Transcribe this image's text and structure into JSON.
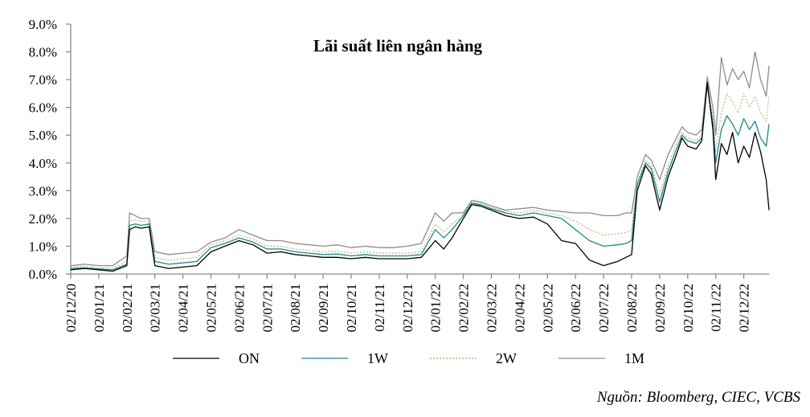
{
  "chart_data": {
    "type": "line",
    "title": "Lãi suất liên ngân hàng",
    "xlabel": "",
    "ylabel": "",
    "ylim": [
      0,
      9
    ],
    "yticks": [
      "0.0%",
      "1.0%",
      "2.0%",
      "3.0%",
      "4.0%",
      "5.0%",
      "6.0%",
      "7.0%",
      "8.0%",
      "9.0%"
    ],
    "xticks": [
      "02/12/20",
      "02/01/21",
      "02/02/21",
      "02/03/21",
      "02/04/21",
      "02/05/21",
      "02/06/21",
      "02/07/21",
      "02/08/21",
      "02/09/21",
      "02/10/21",
      "02/11/21",
      "02/12/21",
      "02/01/22",
      "02/02/22",
      "02/03/22",
      "02/04/22",
      "02/05/22",
      "02/06/22",
      "02/07/22",
      "02/08/22",
      "02/09/22",
      "02/10/22",
      "02/11/22",
      "02/12/22"
    ],
    "grid": false,
    "legend_position": "bottom",
    "x": [
      0,
      0.5,
      1,
      1.5,
      2,
      2.1,
      2.3,
      2.5,
      2.8,
      3,
      3.5,
      4,
      4.5,
      5,
      5.5,
      6,
      6.5,
      7,
      7.5,
      8,
      8.5,
      9,
      9.5,
      10,
      10.5,
      11,
      11.5,
      12,
      12.5,
      13,
      13.3,
      13.6,
      14,
      14.3,
      14.6,
      15,
      15.5,
      16,
      16.5,
      17,
      17.5,
      18,
      18.5,
      19,
      19.5,
      19.8,
      20,
      20.2,
      20.5,
      20.7,
      21,
      21.3,
      21.6,
      21.8,
      22,
      22.3,
      22.5,
      22.7,
      22.9,
      23,
      23.2,
      23.4,
      23.6,
      23.8,
      24,
      24.2,
      24.4,
      24.6,
      24.8,
      24.9
    ],
    "series": [
      {
        "name": "ON",
        "color": "#000000",
        "dash": "",
        "values": [
          0.15,
          0.2,
          0.15,
          0.1,
          0.3,
          1.6,
          1.7,
          1.65,
          1.7,
          0.3,
          0.2,
          0.25,
          0.3,
          0.8,
          1.0,
          1.2,
          1.05,
          0.75,
          0.8,
          0.7,
          0.65,
          0.6,
          0.6,
          0.55,
          0.6,
          0.55,
          0.55,
          0.55,
          0.6,
          1.2,
          0.9,
          1.3,
          2.0,
          2.5,
          2.45,
          2.3,
          2.1,
          2.0,
          2.05,
          1.8,
          1.2,
          1.1,
          0.5,
          0.3,
          0.45,
          0.6,
          0.7,
          3.0,
          3.9,
          3.6,
          2.3,
          3.5,
          4.3,
          4.9,
          4.6,
          4.5,
          4.8,
          6.9,
          5.2,
          3.4,
          4.7,
          4.3,
          5.1,
          4.0,
          4.6,
          4.2,
          5.1,
          4.4,
          3.4,
          2.3
        ]
      },
      {
        "name": "1W",
        "color": "#1b8a8a",
        "dash": "",
        "values": [
          0.2,
          0.22,
          0.18,
          0.15,
          0.35,
          1.75,
          1.8,
          1.75,
          1.8,
          0.45,
          0.35,
          0.4,
          0.45,
          0.95,
          1.1,
          1.3,
          1.15,
          0.9,
          0.9,
          0.8,
          0.75,
          0.7,
          0.72,
          0.65,
          0.7,
          0.65,
          0.65,
          0.65,
          0.7,
          1.6,
          1.3,
          1.6,
          2.1,
          2.55,
          2.5,
          2.35,
          2.2,
          2.1,
          2.2,
          2.1,
          2.0,
          1.6,
          1.2,
          1.0,
          1.05,
          1.1,
          1.2,
          3.2,
          4.0,
          3.8,
          2.6,
          3.7,
          4.5,
          5.0,
          4.8,
          4.7,
          4.9,
          6.8,
          5.4,
          4.0,
          5.2,
          5.7,
          5.4,
          5.0,
          5.6,
          5.2,
          5.5,
          4.9,
          4.6,
          5.4
        ]
      },
      {
        "name": "2W",
        "color": "#b8a46a",
        "dash": "2,2",
        "values": [
          0.25,
          0.28,
          0.22,
          0.2,
          0.45,
          1.9,
          1.95,
          1.9,
          1.9,
          0.6,
          0.5,
          0.55,
          0.6,
          1.05,
          1.2,
          1.4,
          1.25,
          1.0,
          1.0,
          0.9,
          0.85,
          0.8,
          0.82,
          0.75,
          0.8,
          0.75,
          0.75,
          0.75,
          0.8,
          1.8,
          1.5,
          1.8,
          2.15,
          2.6,
          2.55,
          2.4,
          2.25,
          2.2,
          2.3,
          2.2,
          2.1,
          1.9,
          1.6,
          1.4,
          1.45,
          1.5,
          1.6,
          3.3,
          4.1,
          3.9,
          2.9,
          3.9,
          4.7,
          5.1,
          4.9,
          4.8,
          5.0,
          6.9,
          5.6,
          4.4,
          5.8,
          6.5,
          6.2,
          5.8,
          6.5,
          6.0,
          6.4,
          5.8,
          5.5,
          6.4
        ]
      },
      {
        "name": "1M",
        "color": "#8c8c8c",
        "dash": "",
        "values": [
          0.3,
          0.35,
          0.3,
          0.3,
          0.65,
          2.2,
          2.1,
          2.0,
          2.0,
          0.8,
          0.7,
          0.75,
          0.8,
          1.15,
          1.3,
          1.6,
          1.4,
          1.2,
          1.2,
          1.1,
          1.05,
          1.0,
          1.05,
          0.95,
          1.0,
          0.95,
          0.95,
          1.0,
          1.1,
          2.2,
          1.9,
          2.2,
          2.2,
          2.65,
          2.6,
          2.45,
          2.3,
          2.35,
          2.4,
          2.3,
          2.25,
          2.2,
          2.2,
          2.1,
          2.1,
          2.2,
          2.2,
          3.5,
          4.3,
          4.1,
          3.4,
          4.3,
          4.9,
          5.3,
          5.1,
          5.0,
          5.2,
          7.1,
          6.0,
          5.0,
          7.8,
          6.8,
          7.4,
          7.0,
          7.3,
          6.7,
          8.0,
          7.0,
          6.4,
          7.5
        ]
      }
    ]
  },
  "legend": {
    "items": [
      {
        "label": "ON",
        "color": "#000000",
        "dash": ""
      },
      {
        "label": "1W",
        "color": "#1b8a8a",
        "dash": ""
      },
      {
        "label": "2W",
        "color": "#b8a46a",
        "dash": "2,2"
      },
      {
        "label": "1M",
        "color": "#8c8c8c",
        "dash": ""
      }
    ]
  },
  "source_note": "Nguồn: Bloomberg, CIEC, VCBS"
}
